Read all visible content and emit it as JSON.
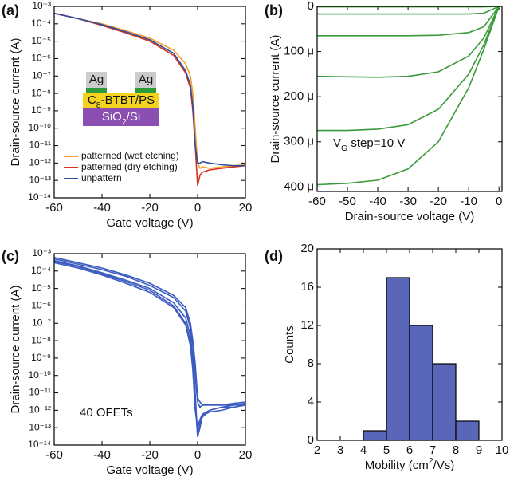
{
  "chart_data": [
    {
      "type": "line",
      "panel_label": "(a)",
      "xlabel": "Gate voltage (V)",
      "ylabel": "Drain-source current (A)",
      "log_y": true,
      "xlim": [
        -60,
        20
      ],
      "xticks": [
        -60,
        -40,
        -20,
        0,
        20
      ],
      "ylim": [
        1e-14,
        0.001
      ],
      "yticks": [
        {
          "value": 0.001,
          "label": "10⁻³"
        },
        {
          "value": 0.0001,
          "label": "10⁻⁴"
        },
        {
          "value": 1e-05,
          "label": "10⁻⁵"
        },
        {
          "value": 1e-06,
          "label": "10⁻⁶"
        },
        {
          "value": 1e-07,
          "label": "10⁻⁷"
        },
        {
          "value": 1e-08,
          "label": "10⁻⁸"
        },
        {
          "value": 1e-09,
          "label": "10⁻⁹"
        },
        {
          "value": 1e-10,
          "label": "10⁻¹⁰"
        },
        {
          "value": 1e-11,
          "label": "10⁻¹¹"
        },
        {
          "value": 1e-12,
          "label": "10⁻¹²"
        },
        {
          "value": 1e-13,
          "label": "10⁻¹³"
        },
        {
          "value": 1e-14,
          "label": "10⁻¹⁴"
        }
      ],
      "legend": "lower left",
      "x": [
        -60,
        -50,
        -40,
        -30,
        -20,
        -10,
        -5,
        -3,
        -2,
        -1,
        0,
        1,
        2,
        5,
        10,
        15,
        20
      ],
      "series": [
        {
          "name": "patterned (wet etching)",
          "color": "#f5a030",
          "values": [
            0.0004,
            0.0002,
            0.0001,
            4e-05,
            1.5e-05,
            3e-06,
            5e-07,
            1e-07,
            1e-08,
            1e-10,
            1e-12,
            5e-13,
            6e-13,
            5e-13,
            6e-13,
            7e-13,
            8e-13
          ]
        },
        {
          "name": "patterned (dry etching)",
          "color": "#d83020",
          "values": [
            0.0004,
            0.0002,
            8e-05,
            3e-05,
            1e-05,
            1.5e-06,
            1.5e-07,
            2e-08,
            1e-09,
            1e-11,
            5e-14,
            2e-13,
            3e-13,
            4e-13,
            5e-13,
            6e-13,
            7e-13
          ]
        },
        {
          "name": "unpattern",
          "color": "#3050a0",
          "values": [
            0.0004,
            0.0002,
            9e-05,
            3.5e-05,
            1.2e-05,
            2e-06,
            2e-07,
            3e-08,
            2e-09,
            1e-11,
            1e-12,
            1e-12,
            1.2e-12,
            1e-12,
            8e-13,
            7e-13,
            7e-13
          ]
        }
      ],
      "inset": {
        "electrode_left": "Ag",
        "electrode_right": "Ag",
        "semiconductor": [
          "C",
          "8",
          "-BTBT/PS"
        ],
        "substrate": [
          "SiO",
          "2",
          "/Si"
        ]
      }
    },
    {
      "type": "line",
      "panel_label": "(b)",
      "xlabel": "Drain-source voltage (V)",
      "ylabel": "Drain-source current (A)",
      "y_inverted": true,
      "xlim": [
        -60,
        1
      ],
      "xticks": [
        -60,
        -50,
        -40,
        -30,
        -20,
        -10,
        0
      ],
      "ylim": [
        0,
        0.00041
      ],
      "yticks": [
        0,
        {
          "value": 0.0001,
          "label": "100 μ"
        },
        {
          "value": 0.0002,
          "label": "200 μ"
        },
        {
          "value": 0.0003,
          "label": "300 μ"
        },
        {
          "value": 0.0004,
          "label": "400 μ"
        }
      ],
      "annotation": [
        "V",
        "G",
        " step=10 V"
      ],
      "x": [
        -60,
        -50,
        -40,
        -30,
        -20,
        -10,
        -5,
        0
      ],
      "series": [
        {
          "color": "#3a9a3a",
          "values": [
            0.000395,
            0.000392,
            0.000385,
            0.00036,
            0.0003,
            0.00018,
            9.5e-05,
            0
          ]
        },
        {
          "color": "#3a9a3a",
          "values": [
            0.000275,
            0.000275,
            0.000272,
            0.000262,
            0.000228,
            0.00015,
            8.5e-05,
            0
          ]
        },
        {
          "color": "#3a9a3a",
          "values": [
            0.000155,
            0.000156,
            0.000157,
            0.000155,
            0.000145,
            0.00011,
            7e-05,
            0
          ]
        },
        {
          "color": "#3a9a3a",
          "values": [
            6.5e-05,
            6.5e-05,
            6.5e-05,
            6.5e-05,
            6.4e-05,
            5.8e-05,
            4.5e-05,
            0
          ]
        },
        {
          "color": "#3a9a3a",
          "values": [
            1.7e-05,
            1.7e-05,
            1.7e-05,
            1.7e-05,
            1.7e-05,
            1.7e-05,
            1.5e-05,
            0
          ]
        },
        {
          "color": "#3a9a3a",
          "values": [
            1e-06,
            1e-06,
            1e-06,
            1e-06,
            1e-06,
            1e-06,
            1e-06,
            0
          ]
        }
      ]
    },
    {
      "type": "line",
      "panel_label": "(c)",
      "xlabel": "Gate voltage (V)",
      "ylabel": "Drain-source current (A)",
      "log_y": true,
      "xlim": [
        -60,
        20
      ],
      "xticks": [
        -60,
        -40,
        -20,
        0,
        20
      ],
      "ylim": [
        1e-14,
        0.001
      ],
      "yticks": [
        {
          "value": 0.001,
          "label": "10⁻³"
        },
        {
          "value": 0.0001,
          "label": "10⁻⁴"
        },
        {
          "value": 1e-05,
          "label": "10⁻⁵"
        },
        {
          "value": 1e-06,
          "label": "10⁻⁶"
        },
        {
          "value": 1e-07,
          "label": "10⁻⁷"
        },
        {
          "value": 1e-08,
          "label": "10⁻⁸"
        },
        {
          "value": 1e-09,
          "label": "10⁻⁹"
        },
        {
          "value": 1e-10,
          "label": "10⁻¹⁰"
        },
        {
          "value": 1e-11,
          "label": "10⁻¹¹"
        },
        {
          "value": 1e-12,
          "label": "10⁻¹²"
        },
        {
          "value": 1e-13,
          "label": "10⁻¹³"
        },
        {
          "value": 1e-14,
          "label": "10⁻¹⁴"
        }
      ],
      "annotation": "40 OFETs",
      "x": [
        -60,
        -50,
        -40,
        -30,
        -20,
        -10,
        -5,
        -3,
        -2,
        -1,
        0,
        1,
        2,
        5,
        10,
        15,
        20
      ],
      "series": [
        {
          "color": "#3b5bc0",
          "values": [
            0.0005,
            0.00025,
            0.00012,
            5e-05,
            1.5e-05,
            3e-06,
            5e-07,
            5e-08,
            5e-09,
            1e-10,
            3e-12,
            1.5e-12,
            2e-12,
            2e-12,
            2e-12,
            2e-12,
            2e-12
          ]
        },
        {
          "color": "#3b5bc0",
          "values": [
            0.0004,
            0.0002,
            8e-05,
            3e-05,
            1e-05,
            1.5e-06,
            2e-07,
            2e-08,
            1e-09,
            1e-11,
            3e-14,
            1e-13,
            5e-13,
            8e-13,
            1e-12,
            1.5e-12,
            2e-12
          ]
        },
        {
          "color": "#3b5bc0",
          "values": [
            0.0003,
            0.00015,
            6e-05,
            2e-05,
            6e-06,
            8e-07,
            8e-08,
            5e-09,
            2e-10,
            1e-12,
            1e-13,
            3e-13,
            6e-13,
            1e-12,
            1.5e-12,
            1.5e-12,
            2e-12
          ]
        },
        {
          "color": "#3b5bc0",
          "values": [
            0.0006,
            0.0003,
            0.00015,
            6e-05,
            2e-05,
            4e-06,
            8e-07,
            1e-07,
            1e-08,
            5e-10,
            5e-12,
            3e-12,
            2e-12,
            2e-12,
            2e-12,
            2.5e-12,
            3e-12
          ]
        },
        {
          "color": "#3b5bc0",
          "values": [
            0.00035,
            0.00018,
            7e-05,
            2.5e-05,
            8e-06,
            1e-06,
            1e-07,
            1e-08,
            5e-10,
            3e-12,
            3e-14,
            2e-13,
            4e-13,
            1e-12,
            1.5e-12,
            2e-12,
            2.5e-12
          ]
        }
      ]
    },
    {
      "type": "histogram",
      "panel_label": "(d)",
      "xlabel": [
        "Mobility (cm",
        "2",
        "/Vs)"
      ],
      "ylabel": "Counts",
      "xlim": [
        2,
        10
      ],
      "xticks": [
        2,
        3,
        4,
        5,
        6,
        7,
        8,
        9,
        10
      ],
      "ylim": [
        0,
        20
      ],
      "yticks": [
        0,
        4,
        8,
        12,
        16,
        20
      ],
      "bins": [
        4,
        5,
        6,
        7,
        8,
        9
      ],
      "values": [
        1,
        17,
        12,
        8,
        2
      ],
      "color": "#5a67b8"
    }
  ]
}
